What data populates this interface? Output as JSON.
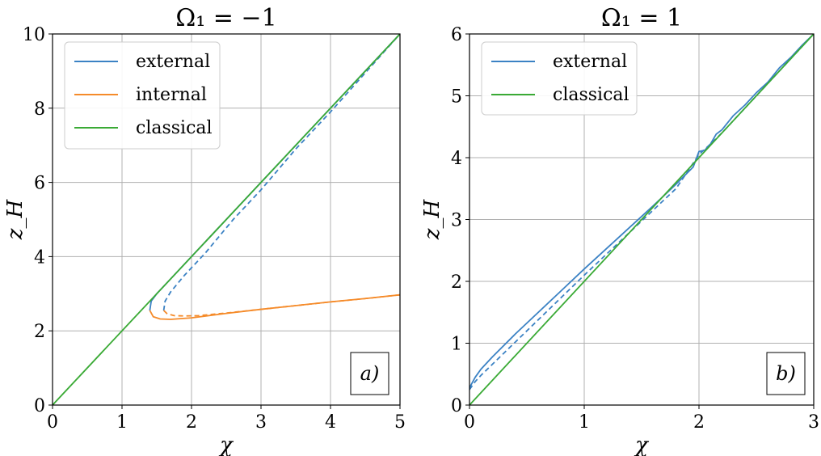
{
  "chart_data": [
    {
      "type": "line",
      "panel_tag": "a)",
      "title": "Ω₁ = −1",
      "xlabel": "χ",
      "ylabel": "z_H",
      "xlim": [
        0,
        5
      ],
      "ylim": [
        0,
        10
      ],
      "xticks": [
        "0",
        "1",
        "2",
        "3",
        "4",
        "5"
      ],
      "yticks": [
        "0",
        "2",
        "4",
        "6",
        "8",
        "10"
      ],
      "grid": true,
      "legend_position": "top-left",
      "legend": [
        "external",
        "internal",
        "classical"
      ],
      "series": [
        {
          "name": "external",
          "color": "#3b82c4",
          "style": "solid",
          "x": [
            1.4,
            1.42,
            1.5,
            1.7,
            2.0,
            2.5,
            3.0,
            3.5,
            4.0,
            4.5,
            5.0
          ],
          "y": [
            2.55,
            2.8,
            3.0,
            3.4,
            4.0,
            5.0,
            6.0,
            7.0,
            8.0,
            9.0,
            10.0
          ]
        },
        {
          "name": "external (dashed)",
          "color": "#3b82c4",
          "style": "dashed",
          "x": [
            1.6,
            1.62,
            1.7,
            1.9,
            2.2,
            2.6,
            3.0,
            3.5,
            4.0,
            4.5,
            5.0
          ],
          "y": [
            2.55,
            2.8,
            3.05,
            3.5,
            4.1,
            5.0,
            5.8,
            6.9,
            7.9,
            8.95,
            10.0
          ]
        },
        {
          "name": "internal",
          "color": "#f58b2a",
          "style": "solid",
          "x": [
            1.4,
            1.45,
            1.55,
            1.7,
            2.0,
            2.5,
            3.0,
            3.5,
            4.0,
            4.5,
            5.0
          ],
          "y": [
            2.55,
            2.38,
            2.32,
            2.31,
            2.35,
            2.47,
            2.58,
            2.68,
            2.78,
            2.87,
            2.97
          ]
        },
        {
          "name": "internal (dashed)",
          "color": "#f58b2a",
          "style": "dashed",
          "x": [
            1.6,
            1.65,
            1.75,
            1.9,
            2.1,
            2.5,
            3.0,
            3.5,
            4.0,
            4.5,
            5.0
          ],
          "y": [
            2.55,
            2.46,
            2.41,
            2.4,
            2.41,
            2.48,
            2.58,
            2.68,
            2.78,
            2.87,
            2.97
          ]
        },
        {
          "name": "classical",
          "color": "#3aaa35",
          "style": "solid",
          "x": [
            0,
            5
          ],
          "y": [
            0,
            10
          ]
        }
      ]
    },
    {
      "type": "line",
      "panel_tag": "b)",
      "title": "Ω₁ = 1",
      "xlabel": "χ",
      "ylabel": "z_H",
      "xlim": [
        0,
        3
      ],
      "ylim": [
        0,
        6
      ],
      "xticks": [
        "0",
        "1",
        "2",
        "3"
      ],
      "yticks": [
        "0",
        "1",
        "2",
        "3",
        "4",
        "5",
        "6"
      ],
      "grid": true,
      "legend_position": "top-left",
      "legend": [
        "external",
        "classical"
      ],
      "series": [
        {
          "name": "external",
          "color": "#3b82c4",
          "style": "solid",
          "x": [
            0.0,
            0.05,
            0.1,
            0.2,
            0.4,
            0.6,
            0.8,
            1.0,
            1.2,
            1.4,
            1.6,
            1.8,
            1.95,
            2.0,
            2.05,
            2.1,
            2.15,
            2.2,
            2.3,
            2.4,
            2.5,
            2.6,
            2.7,
            2.8,
            2.9,
            3.0
          ],
          "y": [
            0.28,
            0.45,
            0.58,
            0.78,
            1.15,
            1.5,
            1.85,
            2.2,
            2.54,
            2.88,
            3.22,
            3.57,
            3.85,
            4.1,
            4.12,
            4.22,
            4.38,
            4.45,
            4.68,
            4.85,
            5.05,
            5.22,
            5.45,
            5.62,
            5.82,
            6.0
          ]
        },
        {
          "name": "external (dashed)",
          "color": "#3b82c4",
          "style": "dashed",
          "x": [
            0.0,
            0.05,
            0.1,
            0.2,
            0.4,
            0.6,
            0.8,
            1.0,
            1.2,
            1.4,
            1.6,
            1.8,
            2.0,
            2.1,
            2.2,
            2.3,
            2.4,
            2.5,
            2.6,
            2.7,
            2.8,
            2.9,
            3.0
          ],
          "y": [
            0.25,
            0.38,
            0.48,
            0.66,
            1.02,
            1.38,
            1.74,
            2.1,
            2.45,
            2.8,
            3.15,
            3.5,
            4.05,
            4.22,
            4.4,
            4.6,
            4.8,
            5.0,
            5.2,
            5.4,
            5.6,
            5.8,
            6.0
          ]
        },
        {
          "name": "classical",
          "color": "#3aaa35",
          "style": "solid",
          "x": [
            0,
            3
          ],
          "y": [
            0,
            6
          ]
        }
      ]
    }
  ]
}
